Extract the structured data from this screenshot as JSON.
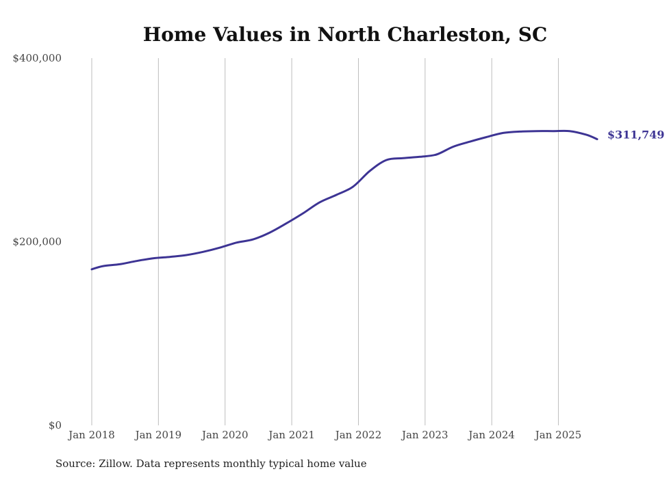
{
  "chart_data": {
    "type": "line",
    "title": "Home Values in North Charleston, SC",
    "source": "Source: Zillow. Data represents monthly typical home value",
    "y_ticks": [
      {
        "value": 0,
        "label": "$0"
      },
      {
        "value": 200000,
        "label": "$200,000"
      },
      {
        "value": 400000,
        "label": "$400,000"
      }
    ],
    "x_ticks": [
      {
        "value": 2018.0,
        "label": "Jan 2018"
      },
      {
        "value": 2019.0,
        "label": "Jan 2019"
      },
      {
        "value": 2020.0,
        "label": "Jan 2020"
      },
      {
        "value": 2021.0,
        "label": "Jan 2021"
      },
      {
        "value": 2022.0,
        "label": "Jan 2022"
      },
      {
        "value": 2023.0,
        "label": "Jan 2023"
      },
      {
        "value": 2024.0,
        "label": "Jan 2024"
      },
      {
        "value": 2025.0,
        "label": "Jan 2025"
      }
    ],
    "xlim": [
      2018.0,
      2025.6
    ],
    "ylim": [
      0,
      400000
    ],
    "grid": {
      "vertical": true,
      "horizontal": false
    },
    "series": [
      {
        "color": "#3d3494",
        "end_label": "$311,749",
        "x": [
          2018.0,
          2018.17,
          2018.42,
          2018.67,
          2018.92,
          2019.17,
          2019.42,
          2019.67,
          2019.92,
          2020.17,
          2020.42,
          2020.67,
          2020.92,
          2021.17,
          2021.42,
          2021.67,
          2021.92,
          2022.17,
          2022.42,
          2022.67,
          2022.92,
          2023.17,
          2023.42,
          2023.67,
          2023.92,
          2024.17,
          2024.42,
          2024.67,
          2024.92,
          2025.17,
          2025.42,
          2025.58
        ],
        "y": [
          170000,
          173500,
          175500,
          179000,
          182000,
          183500,
          185500,
          189000,
          193500,
          199000,
          202500,
          210000,
          220000,
          231000,
          243000,
          251000,
          260000,
          277000,
          289000,
          291000,
          292500,
          295000,
          303500,
          309000,
          314000,
          318500,
          320000,
          320500,
          320500,
          320500,
          316500,
          311749
        ]
      }
    ]
  }
}
